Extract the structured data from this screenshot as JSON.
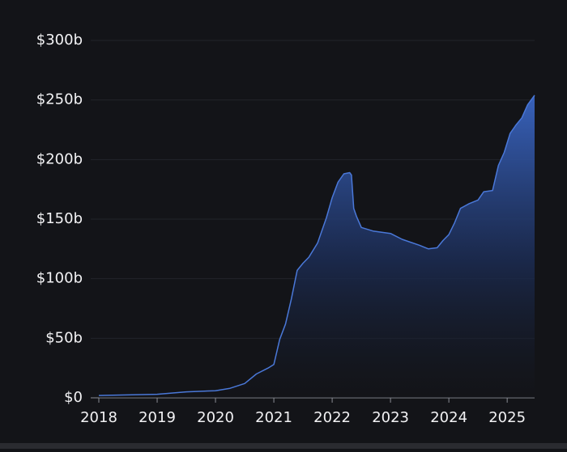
{
  "chart_data": {
    "type": "area",
    "color": "#4a78d8",
    "grid": true,
    "x": [
      2018.0,
      2019.0,
      2019.5,
      2020.0,
      2020.25,
      2020.5,
      2020.7,
      2020.9,
      2021.0,
      2021.1,
      2021.2,
      2021.3,
      2021.4,
      2021.5,
      2021.6,
      2021.75,
      2021.9,
      2022.0,
      2022.1,
      2022.2,
      2022.3,
      2022.33,
      2022.37,
      2022.42,
      2022.5,
      2022.7,
      2023.0,
      2023.2,
      2023.5,
      2023.65,
      2023.8,
      2023.9,
      2024.0,
      2024.1,
      2024.2,
      2024.35,
      2024.5,
      2024.6,
      2024.75,
      2024.85,
      2024.95,
      2025.05,
      2025.15,
      2025.25,
      2025.35,
      2025.47
    ],
    "values": [
      2,
      3,
      5,
      6,
      8,
      12,
      20,
      25,
      28,
      49,
      62,
      83,
      107,
      113,
      118,
      130,
      151,
      168,
      181,
      188,
      189,
      187,
      159,
      152,
      143,
      140,
      138,
      133,
      128,
      125,
      126,
      132,
      137,
      147,
      159,
      163,
      166,
      173,
      174,
      195,
      206,
      222,
      229,
      235,
      246,
      254
    ],
    "xlim": [
      2018,
      2025.47
    ],
    "xticks": [
      2018,
      2019,
      2020,
      2021,
      2022,
      2023,
      2024,
      2025
    ],
    "ylim": [
      0,
      300
    ],
    "yticks": [
      {
        "value": 0,
        "label": "$0"
      },
      {
        "value": 50,
        "label": "$50b"
      },
      {
        "value": 100,
        "label": "$100b"
      },
      {
        "value": 150,
        "label": "$150b"
      },
      {
        "value": 200,
        "label": "$200b"
      },
      {
        "value": 250,
        "label": "$250b"
      },
      {
        "value": 300,
        "label": "$300b"
      }
    ]
  }
}
